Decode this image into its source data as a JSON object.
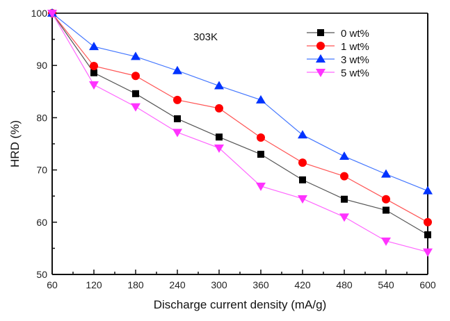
{
  "chart_data": {
    "type": "line",
    "title": "",
    "annotation": "303K",
    "xlabel": "Discharge current density (mA/g)",
    "ylabel": "HRD (%)",
    "xlim": [
      60,
      600
    ],
    "ylim": [
      50,
      100
    ],
    "xticks": [
      60,
      120,
      180,
      240,
      300,
      360,
      420,
      480,
      540,
      600
    ],
    "yticks": [
      50,
      60,
      70,
      80,
      90,
      100
    ],
    "grid": false,
    "legend_position": "top-right",
    "x": [
      60,
      120,
      180,
      240,
      300,
      360,
      420,
      480,
      540,
      600
    ],
    "series": [
      {
        "name": "0 wt%",
        "color": "#000000",
        "line_color": "#555555",
        "marker": "square",
        "values": [
          100,
          88.6,
          84.6,
          79.8,
          76.3,
          73.0,
          68.1,
          64.4,
          62.3,
          57.6
        ]
      },
      {
        "name": "1 wt%",
        "color": "#ff0000",
        "line_color": "#ff5555",
        "marker": "circle",
        "values": [
          100,
          89.9,
          88.0,
          83.4,
          81.8,
          76.2,
          71.4,
          68.8,
          64.4,
          60.0
        ]
      },
      {
        "name": "3 wt%",
        "color": "#0033ff",
        "line_color": "#4477ff",
        "marker": "triangle-up",
        "values": [
          100,
          93.6,
          91.7,
          89.0,
          86.1,
          83.4,
          76.7,
          72.6,
          69.2,
          66.0
        ]
      },
      {
        "name": "5 wt%",
        "color": "#ff33ff",
        "line_color": "#ff66ff",
        "marker": "triangle-down",
        "values": [
          100,
          86.3,
          82.1,
          77.2,
          74.2,
          66.9,
          64.5,
          61.0,
          56.4,
          54.3
        ]
      }
    ]
  }
}
